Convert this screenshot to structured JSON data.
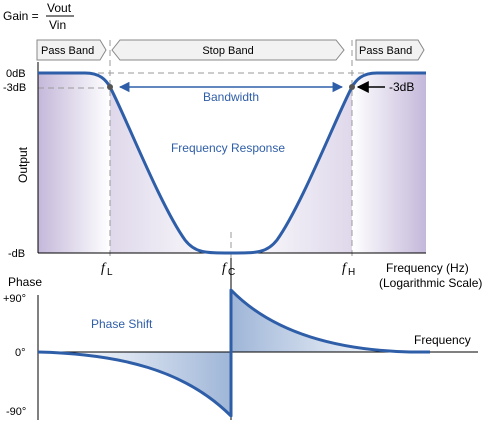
{
  "gain_formula": {
    "prefix": "Gain =",
    "numerator": "Vout",
    "denominator": "Vin"
  },
  "bands": {
    "left_pass": "Pass Band",
    "stop": "Stop Band",
    "right_pass": "Pass Band"
  },
  "top_plot": {
    "y_label_axis": "Output",
    "y_ticks": [
      "0dB",
      "-3dB",
      "-dB"
    ],
    "right_marker": "-3dB",
    "bandwidth_label": "Bandwidth",
    "curve_label": "Frequency Response",
    "x_labels": {
      "fl_f": "f",
      "fl_sub": "L",
      "fc_f": "f",
      "fc_sub": "C",
      "fh_f": "f",
      "fh_sub": "H"
    },
    "x_axis_label_1": "Frequency (Hz)",
    "x_axis_label_2": "(Logarithmic Scale)"
  },
  "bottom_plot": {
    "y_title": "Phase",
    "y_ticks": [
      "+90°",
      "0°",
      "-90°"
    ],
    "curve_label": "Phase Shift",
    "x_axis_label": "Frequency"
  },
  "colors": {
    "curve": "#2f5ea8",
    "fill_light": "#ffffff",
    "fill_dark": "#c9bedd",
    "phase_fill": "#a9bedd",
    "dashed": "#9a9a9a",
    "band_box": "#f0f0f0"
  }
}
